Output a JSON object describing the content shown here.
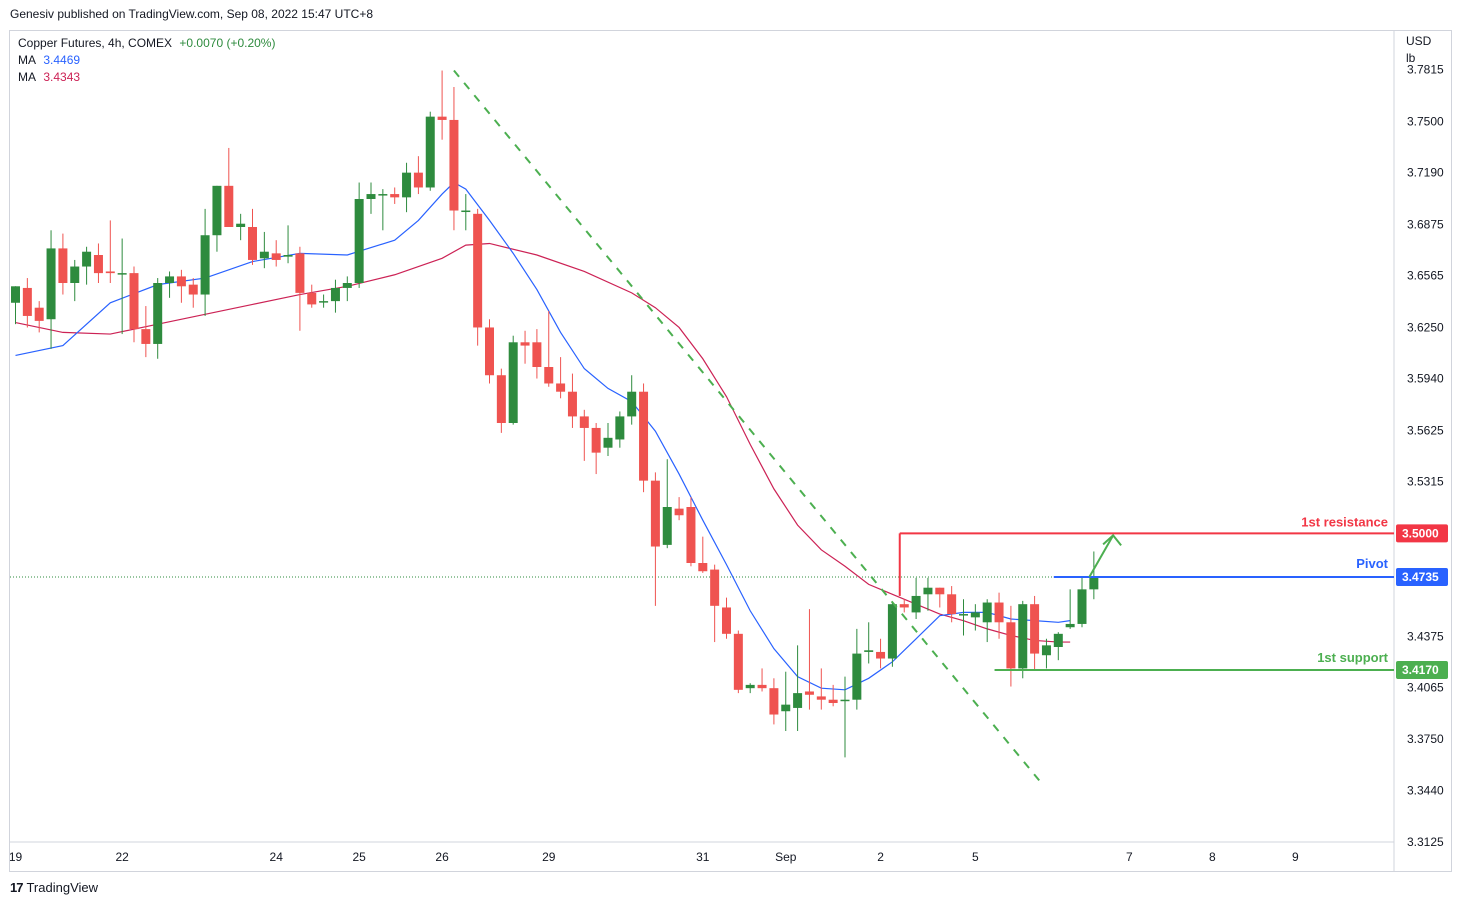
{
  "header": {
    "publisher": "Genesiv published on TradingView.com, Sep 08, 2022 15:47 UTC+8"
  },
  "legend": {
    "symbol": "Copper Futures, 4h, COMEX",
    "change": "+0.0070 (+0.20%)",
    "ma1_label": "MA",
    "ma1_value": "3.4469",
    "ma2_label": "MA",
    "ma2_value": "3.4343"
  },
  "footer": {
    "brand": "TradingView",
    "logo": "17"
  },
  "colors": {
    "up": "#2e8b3e",
    "down": "#ef5350",
    "ma_fast": "#2962ff",
    "ma_slow": "#cc2255",
    "resistance": "#f23645",
    "support": "#4caf50",
    "pivot": "#2962ff",
    "trendline": "#4caf50"
  },
  "chart_data": {
    "type": "candlestick",
    "title": "Copper Futures, 4h, COMEX",
    "currency": "USD",
    "unit": "lb",
    "ylim": [
      3.295,
      3.805
    ],
    "y_ticks": [
      "3.7815",
      "3.7500",
      "3.7190",
      "3.6875",
      "3.6565",
      "3.6250",
      "3.5940",
      "3.5625",
      "3.5315",
      "3.4375",
      "3.4065",
      "3.3750",
      "3.3440",
      "3.3125"
    ],
    "x_labels": [
      {
        "label": "19",
        "bar": 0
      },
      {
        "label": "22",
        "bar": 9
      },
      {
        "label": "24",
        "bar": 22
      },
      {
        "label": "25",
        "bar": 29
      },
      {
        "label": "26",
        "bar": 36
      },
      {
        "label": "29",
        "bar": 45
      },
      {
        "label": "31",
        "bar": 58
      },
      {
        "label": "Sep",
        "bar": 65
      },
      {
        "label": "2",
        "bar": 73
      },
      {
        "label": "5",
        "bar": 81
      },
      {
        "label": "7",
        "bar": 94
      },
      {
        "label": "8",
        "bar": 101
      },
      {
        "label": "9",
        "bar": 108
      }
    ],
    "candles": [
      {
        "o": 3.64,
        "h": 3.65,
        "l": 3.627,
        "c": 3.65
      },
      {
        "o": 3.649,
        "h": 3.655,
        "l": 3.625,
        "c": 3.632
      },
      {
        "o": 3.637,
        "h": 3.641,
        "l": 3.622,
        "c": 3.629
      },
      {
        "o": 3.63,
        "h": 3.684,
        "l": 3.612,
        "c": 3.673
      },
      {
        "o": 3.673,
        "h": 3.682,
        "l": 3.645,
        "c": 3.652
      },
      {
        "o": 3.652,
        "h": 3.666,
        "l": 3.641,
        "c": 3.662
      },
      {
        "o": 3.662,
        "h": 3.674,
        "l": 3.651,
        "c": 3.671
      },
      {
        "o": 3.669,
        "h": 3.676,
        "l": 3.652,
        "c": 3.658
      },
      {
        "o": 3.659,
        "h": 3.69,
        "l": 3.652,
        "c": 3.658
      },
      {
        "o": 3.658,
        "h": 3.679,
        "l": 3.621,
        "c": 3.658
      },
      {
        "o": 3.658,
        "h": 3.662,
        "l": 3.616,
        "c": 3.624
      },
      {
        "o": 3.624,
        "h": 3.638,
        "l": 3.607,
        "c": 3.615
      },
      {
        "o": 3.615,
        "h": 3.655,
        "l": 3.606,
        "c": 3.652
      },
      {
        "o": 3.652,
        "h": 3.659,
        "l": 3.643,
        "c": 3.656
      },
      {
        "o": 3.656,
        "h": 3.66,
        "l": 3.64,
        "c": 3.65
      },
      {
        "o": 3.651,
        "h": 3.655,
        "l": 3.637,
        "c": 3.645
      },
      {
        "o": 3.645,
        "h": 3.697,
        "l": 3.632,
        "c": 3.681
      },
      {
        "o": 3.681,
        "h": 3.711,
        "l": 3.671,
        "c": 3.711
      },
      {
        "o": 3.711,
        "h": 3.734,
        "l": 3.686,
        "c": 3.686
      },
      {
        "o": 3.686,
        "h": 3.694,
        "l": 3.678,
        "c": 3.688
      },
      {
        "o": 3.686,
        "h": 3.697,
        "l": 3.663,
        "c": 3.666
      },
      {
        "o": 3.667,
        "h": 3.683,
        "l": 3.661,
        "c": 3.671
      },
      {
        "o": 3.67,
        "h": 3.678,
        "l": 3.662,
        "c": 3.666
      },
      {
        "o": 3.668,
        "h": 3.687,
        "l": 3.664,
        "c": 3.669
      },
      {
        "o": 3.67,
        "h": 3.674,
        "l": 3.623,
        "c": 3.646
      },
      {
        "o": 3.646,
        "h": 3.651,
        "l": 3.637,
        "c": 3.639
      },
      {
        "o": 3.641,
        "h": 3.645,
        "l": 3.637,
        "c": 3.641
      },
      {
        "o": 3.641,
        "h": 3.654,
        "l": 3.634,
        "c": 3.649
      },
      {
        "o": 3.649,
        "h": 3.656,
        "l": 3.641,
        "c": 3.652
      },
      {
        "o": 3.652,
        "h": 3.713,
        "l": 3.649,
        "c": 3.703
      },
      {
        "o": 3.703,
        "h": 3.713,
        "l": 3.694,
        "c": 3.706
      },
      {
        "o": 3.706,
        "h": 3.709,
        "l": 3.684,
        "c": 3.706
      },
      {
        "o": 3.706,
        "h": 3.71,
        "l": 3.7,
        "c": 3.704
      },
      {
        "o": 3.704,
        "h": 3.725,
        "l": 3.695,
        "c": 3.719
      },
      {
        "o": 3.719,
        "h": 3.729,
        "l": 3.706,
        "c": 3.71
      },
      {
        "o": 3.71,
        "h": 3.756,
        "l": 3.708,
        "c": 3.753
      },
      {
        "o": 3.753,
        "h": 3.781,
        "l": 3.739,
        "c": 3.751
      },
      {
        "o": 3.751,
        "h": 3.771,
        "l": 3.684,
        "c": 3.696
      },
      {
        "o": 3.696,
        "h": 3.706,
        "l": 3.684,
        "c": 3.696
      },
      {
        "o": 3.694,
        "h": 3.697,
        "l": 3.614,
        "c": 3.625
      },
      {
        "o": 3.625,
        "h": 3.63,
        "l": 3.591,
        "c": 3.596
      },
      {
        "o": 3.596,
        "h": 3.6,
        "l": 3.561,
        "c": 3.567
      },
      {
        "o": 3.567,
        "h": 3.62,
        "l": 3.566,
        "c": 3.616
      },
      {
        "o": 3.616,
        "h": 3.623,
        "l": 3.603,
        "c": 3.614
      },
      {
        "o": 3.616,
        "h": 3.624,
        "l": 3.594,
        "c": 3.601
      },
      {
        "o": 3.601,
        "h": 3.635,
        "l": 3.589,
        "c": 3.591
      },
      {
        "o": 3.591,
        "h": 3.607,
        "l": 3.582,
        "c": 3.586
      },
      {
        "o": 3.586,
        "h": 3.597,
        "l": 3.564,
        "c": 3.571
      },
      {
        "o": 3.571,
        "h": 3.575,
        "l": 3.544,
        "c": 3.564
      },
      {
        "o": 3.564,
        "h": 3.567,
        "l": 3.536,
        "c": 3.549
      },
      {
        "o": 3.552,
        "h": 3.567,
        "l": 3.547,
        "c": 3.558
      },
      {
        "o": 3.557,
        "h": 3.574,
        "l": 3.552,
        "c": 3.571
      },
      {
        "o": 3.571,
        "h": 3.596,
        "l": 3.566,
        "c": 3.586
      },
      {
        "o": 3.586,
        "h": 3.591,
        "l": 3.525,
        "c": 3.532
      },
      {
        "o": 3.532,
        "h": 3.537,
        "l": 3.456,
        "c": 3.492
      },
      {
        "o": 3.493,
        "h": 3.545,
        "l": 3.491,
        "c": 3.516
      },
      {
        "o": 3.515,
        "h": 3.522,
        "l": 3.508,
        "c": 3.511
      },
      {
        "o": 3.516,
        "h": 3.522,
        "l": 3.48,
        "c": 3.482
      },
      {
        "o": 3.482,
        "h": 3.498,
        "l": 3.476,
        "c": 3.477
      },
      {
        "o": 3.478,
        "h": 3.481,
        "l": 3.434,
        "c": 3.456
      },
      {
        "o": 3.455,
        "h": 3.461,
        "l": 3.436,
        "c": 3.439
      },
      {
        "o": 3.439,
        "h": 3.441,
        "l": 3.403,
        "c": 3.405
      },
      {
        "o": 3.406,
        "h": 3.409,
        "l": 3.403,
        "c": 3.408
      },
      {
        "o": 3.408,
        "h": 3.418,
        "l": 3.404,
        "c": 3.406
      },
      {
        "o": 3.406,
        "h": 3.412,
        "l": 3.384,
        "c": 3.39
      },
      {
        "o": 3.392,
        "h": 3.416,
        "l": 3.38,
        "c": 3.396
      },
      {
        "o": 3.394,
        "h": 3.432,
        "l": 3.38,
        "c": 3.403
      },
      {
        "o": 3.404,
        "h": 3.454,
        "l": 3.393,
        "c": 3.402
      },
      {
        "o": 3.401,
        "h": 3.418,
        "l": 3.393,
        "c": 3.399
      },
      {
        "o": 3.399,
        "h": 3.408,
        "l": 3.395,
        "c": 3.397
      },
      {
        "o": 3.399,
        "h": 3.413,
        "l": 3.364,
        "c": 3.399
      },
      {
        "o": 3.399,
        "h": 3.442,
        "l": 3.393,
        "c": 3.427
      },
      {
        "o": 3.428,
        "h": 3.446,
        "l": 3.421,
        "c": 3.429
      },
      {
        "o": 3.428,
        "h": 3.436,
        "l": 3.418,
        "c": 3.424
      },
      {
        "o": 3.424,
        "h": 3.458,
        "l": 3.419,
        "c": 3.457
      },
      {
        "o": 3.457,
        "h": 3.46,
        "l": 3.452,
        "c": 3.455
      },
      {
        "o": 3.452,
        "h": 3.473,
        "l": 3.448,
        "c": 3.462
      },
      {
        "o": 3.463,
        "h": 3.473,
        "l": 3.453,
        "c": 3.467
      },
      {
        "o": 3.467,
        "h": 3.467,
        "l": 3.455,
        "c": 3.463
      },
      {
        "o": 3.463,
        "h": 3.468,
        "l": 3.446,
        "c": 3.451
      },
      {
        "o": 3.451,
        "h": 3.46,
        "l": 3.438,
        "c": 3.451
      },
      {
        "o": 3.449,
        "h": 3.457,
        "l": 3.441,
        "c": 3.452
      },
      {
        "o": 3.446,
        "h": 3.46,
        "l": 3.434,
        "c": 3.458
      },
      {
        "o": 3.458,
        "h": 3.464,
        "l": 3.436,
        "c": 3.446
      },
      {
        "o": 3.446,
        "h": 3.456,
        "l": 3.407,
        "c": 3.418
      },
      {
        "o": 3.418,
        "h": 3.459,
        "l": 3.412,
        "c": 3.457
      },
      {
        "o": 3.457,
        "h": 3.462,
        "l": 3.417,
        "c": 3.427
      },
      {
        "o": 3.426,
        "h": 3.436,
        "l": 3.418,
        "c": 3.432
      },
      {
        "o": 3.431,
        "h": 3.44,
        "l": 3.423,
        "c": 3.439
      },
      {
        "o": 3.443,
        "h": 3.466,
        "l": 3.442,
        "c": 3.445
      },
      {
        "o": 3.445,
        "h": 3.473,
        "l": 3.443,
        "c": 3.466
      },
      {
        "o": 3.466,
        "h": 3.489,
        "l": 3.46,
        "c": 3.4735
      }
    ],
    "ma_fast": {
      "label": "MA",
      "value": 3.4469,
      "points": [
        [
          0,
          3.608
        ],
        [
          4,
          3.614
        ],
        [
          8,
          3.64
        ],
        [
          12,
          3.651
        ],
        [
          16,
          3.655
        ],
        [
          20,
          3.665
        ],
        [
          24,
          3.67
        ],
        [
          28,
          3.669
        ],
        [
          32,
          3.678
        ],
        [
          34,
          3.69
        ],
        [
          36,
          3.706
        ],
        [
          37,
          3.713
        ],
        [
          38,
          3.709
        ],
        [
          40,
          3.69
        ],
        [
          42,
          3.67
        ],
        [
          44,
          3.648
        ],
        [
          46,
          3.622
        ],
        [
          48,
          3.6
        ],
        [
          50,
          3.588
        ],
        [
          52,
          3.58
        ],
        [
          54,
          3.562
        ],
        [
          56,
          3.536
        ],
        [
          58,
          3.508
        ],
        [
          60,
          3.481
        ],
        [
          62,
          3.453
        ],
        [
          64,
          3.43
        ],
        [
          66,
          3.413
        ],
        [
          68,
          3.406
        ],
        [
          70,
          3.405
        ],
        [
          72,
          3.412
        ],
        [
          74,
          3.422
        ],
        [
          76,
          3.436
        ],
        [
          78,
          3.45
        ],
        [
          80,
          3.452
        ],
        [
          82,
          3.452
        ],
        [
          84,
          3.448
        ],
        [
          86,
          3.447
        ],
        [
          88,
          3.446
        ],
        [
          89,
          3.447
        ]
      ]
    },
    "ma_slow": {
      "label": "MA",
      "value": 3.4343,
      "points": [
        [
          0,
          3.628
        ],
        [
          4,
          3.622
        ],
        [
          8,
          3.621
        ],
        [
          12,
          3.627
        ],
        [
          16,
          3.633
        ],
        [
          20,
          3.639
        ],
        [
          24,
          3.645
        ],
        [
          28,
          3.65
        ],
        [
          32,
          3.657
        ],
        [
          36,
          3.667
        ],
        [
          38,
          3.675
        ],
        [
          40,
          3.676
        ],
        [
          44,
          3.669
        ],
        [
          48,
          3.659
        ],
        [
          52,
          3.646
        ],
        [
          54,
          3.637
        ],
        [
          56,
          3.625
        ],
        [
          58,
          3.606
        ],
        [
          60,
          3.583
        ],
        [
          62,
          3.554
        ],
        [
          64,
          3.527
        ],
        [
          66,
          3.505
        ],
        [
          68,
          3.49
        ],
        [
          70,
          3.48
        ],
        [
          72,
          3.469
        ],
        [
          74,
          3.463
        ],
        [
          76,
          3.457
        ],
        [
          78,
          3.451
        ],
        [
          80,
          3.447
        ],
        [
          82,
          3.442
        ],
        [
          84,
          3.438
        ],
        [
          86,
          3.435
        ],
        [
          88,
          3.434
        ],
        [
          89,
          3.434
        ]
      ]
    },
    "trendline": {
      "from": [
        37,
        3.781
      ],
      "to": [
        87,
        3.348
      ],
      "style": "dashed"
    },
    "levels": [
      {
        "name": "1st resistance",
        "value": 3.5,
        "label": "3.5000",
        "from_bar": 75
      },
      {
        "name": "Pivot",
        "value": 3.4735,
        "label": "3.4735",
        "from_bar": 88
      },
      {
        "name": "1st support",
        "value": 3.417,
        "label": "3.4170",
        "from_bar": 83
      }
    ],
    "projection_arrow": {
      "from": [
        91,
        3.4735
      ],
      "to": [
        92.5,
        3.5
      ]
    }
  }
}
